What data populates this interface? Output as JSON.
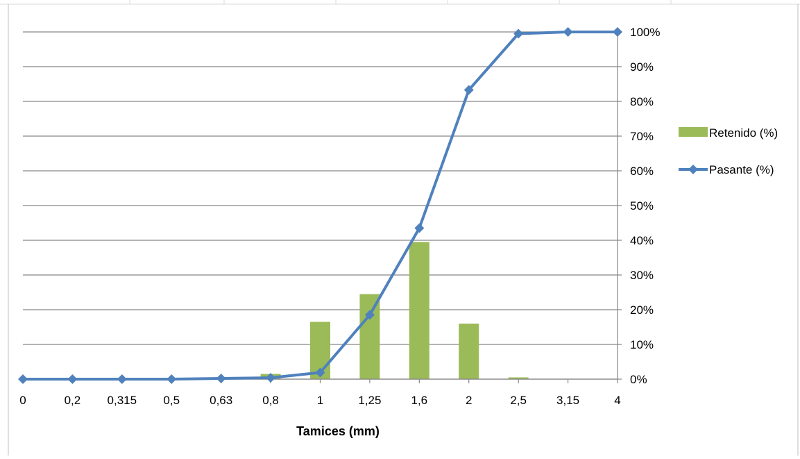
{
  "chart_data": {
    "type": "bar",
    "categories": [
      "0",
      "0,2",
      "0,315",
      "0,5",
      "0,63",
      "0,8",
      "1",
      "1,25",
      "1,6",
      "2",
      "2,5",
      "3,15",
      "4"
    ],
    "series": [
      {
        "name": "Retenido (%)",
        "type": "bar",
        "color": "#9BBB59",
        "values": [
          0,
          0,
          0,
          0,
          0.1,
          1.5,
          16.5,
          24.5,
          39.5,
          16,
          0.5,
          0,
          0
        ]
      },
      {
        "name": "Pasante (%)",
        "type": "line",
        "marker": "diamond",
        "color": "#4F81BD",
        "values": [
          0,
          0,
          0,
          0,
          0.2,
          0.4,
          1.9,
          18.5,
          43.5,
          83.3,
          99.5,
          100,
          100
        ]
      }
    ],
    "xlabel": "Tamices (mm)",
    "ylabel": "",
    "ylim": [
      0,
      100
    ],
    "y_axis_side": "right",
    "y_ticks": [
      "0%",
      "10%",
      "20%",
      "30%",
      "40%",
      "50%",
      "60%",
      "70%",
      "80%",
      "90%",
      "100%"
    ],
    "grid": true,
    "legend_position": "right"
  }
}
